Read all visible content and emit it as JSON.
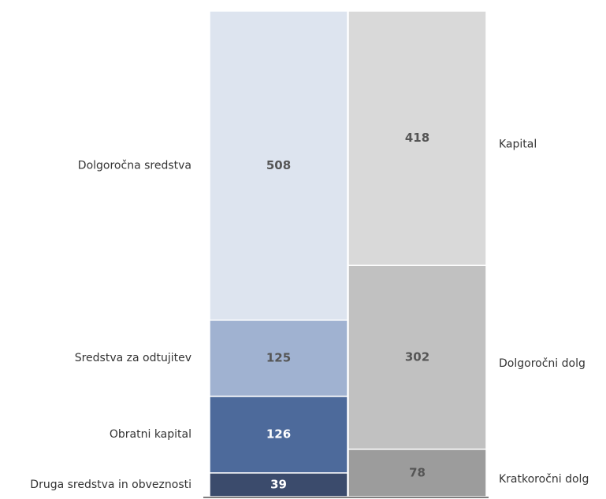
{
  "chart_data": {
    "type": "stacked_bar",
    "stacks": [
      {
        "segments": [
          {
            "name": "Druga sredstva in obveznosti",
            "value": 39,
            "color": "#3b4b6c"
          },
          {
            "name": "Obratni kapital",
            "value": 126,
            "color": "#4d6a9b"
          },
          {
            "name": "Sredstva za odtujitev",
            "value": 125,
            "color": "#a0b2d1"
          },
          {
            "name": "Dolgoročna sredstva",
            "value": 508,
            "color": "#dde4ef"
          }
        ]
      },
      {
        "segments": [
          {
            "name": "Kratkoročni dolg",
            "value": 78,
            "color": "#9c9c9c"
          },
          {
            "name": "Dolgoročni dolg",
            "value": 302,
            "color": "#c1c1c1"
          },
          {
            "name": "Kapital",
            "value": 418,
            "color": "#d9d9d9"
          }
        ]
      }
    ]
  }
}
